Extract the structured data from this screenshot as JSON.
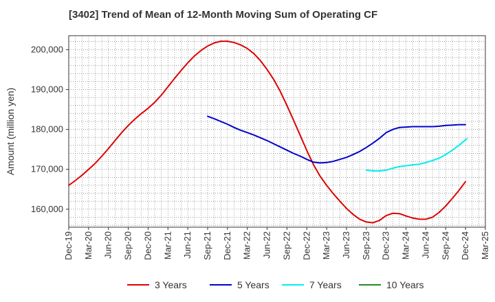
{
  "chart_data": {
    "type": "line",
    "title": "[3402]  Trend of Mean of 12-Month Moving Sum of Operating CF",
    "xlabel": "",
    "ylabel": "Amount (million yen)",
    "ylim": [
      155500,
      203500
    ],
    "yticks": [
      160000,
      170000,
      180000,
      190000,
      200000
    ],
    "ytick_labels": [
      "160,000",
      "170,000",
      "180,000",
      "190,000",
      "200,000"
    ],
    "xticks": [
      "Dec-19",
      "Mar-20",
      "Jun-20",
      "Sep-20",
      "Dec-20",
      "Mar-21",
      "Jun-21",
      "Sep-21",
      "Dec-21",
      "Mar-22",
      "Jun-22",
      "Sep-22",
      "Dec-22",
      "Mar-23",
      "Jun-23",
      "Sep-23",
      "Dec-23",
      "Mar-24",
      "Jun-24",
      "Sep-24",
      "Dec-24",
      "Mar-25"
    ],
    "x_unit": "month index from Dec-19",
    "grid": true,
    "legend_position": "bottom",
    "series": [
      {
        "name": "3 Years",
        "color": "#dd0000",
        "points": [
          [
            0,
            166000
          ],
          [
            1,
            167200
          ],
          [
            2,
            168500
          ],
          [
            3,
            170000
          ],
          [
            4,
            171500
          ],
          [
            5,
            173300
          ],
          [
            6,
            175200
          ],
          [
            7,
            177200
          ],
          [
            8,
            179200
          ],
          [
            9,
            181000
          ],
          [
            10,
            182600
          ],
          [
            11,
            184000
          ],
          [
            12,
            185300
          ],
          [
            13,
            186800
          ],
          [
            14,
            188600
          ],
          [
            15,
            190700
          ],
          [
            16,
            192800
          ],
          [
            17,
            194800
          ],
          [
            18,
            196700
          ],
          [
            19,
            198400
          ],
          [
            20,
            199800
          ],
          [
            21,
            200900
          ],
          [
            22,
            201700
          ],
          [
            23,
            202100
          ],
          [
            24,
            202100
          ],
          [
            25,
            201800
          ],
          [
            26,
            201200
          ],
          [
            27,
            200300
          ],
          [
            28,
            199000
          ],
          [
            29,
            197200
          ],
          [
            30,
            195000
          ],
          [
            31,
            192500
          ],
          [
            32,
            189500
          ],
          [
            33,
            186000
          ],
          [
            34,
            182300
          ],
          [
            35,
            178500
          ],
          [
            36,
            174700
          ],
          [
            37,
            171200
          ],
          [
            38,
            168300
          ],
          [
            39,
            166000
          ],
          [
            40,
            163900
          ],
          [
            41,
            162000
          ],
          [
            42,
            160200
          ],
          [
            43,
            158700
          ],
          [
            44,
            157500
          ],
          [
            45,
            156800
          ],
          [
            46,
            156600
          ],
          [
            47,
            157200
          ],
          [
            48,
            158400
          ],
          [
            49,
            159000
          ],
          [
            50,
            158900
          ],
          [
            51,
            158300
          ],
          [
            52,
            157800
          ],
          [
            53,
            157500
          ],
          [
            54,
            157500
          ],
          [
            55,
            158000
          ],
          [
            56,
            159200
          ],
          [
            57,
            160800
          ],
          [
            58,
            162700
          ],
          [
            59,
            164700
          ],
          [
            60,
            166900
          ]
        ]
      },
      {
        "name": "5 Years",
        "color": "#0000cc",
        "points": [
          [
            21,
            183300
          ],
          [
            22,
            182700
          ],
          [
            23,
            182000
          ],
          [
            24,
            181300
          ],
          [
            25,
            180500
          ],
          [
            26,
            179800
          ],
          [
            27,
            179200
          ],
          [
            28,
            178600
          ],
          [
            29,
            177900
          ],
          [
            30,
            177200
          ],
          [
            31,
            176400
          ],
          [
            32,
            175600
          ],
          [
            33,
            174800
          ],
          [
            34,
            174000
          ],
          [
            35,
            173300
          ],
          [
            36,
            172500
          ],
          [
            37,
            171800
          ],
          [
            38,
            171600
          ],
          [
            39,
            171700
          ],
          [
            40,
            172000
          ],
          [
            41,
            172500
          ],
          [
            42,
            173000
          ],
          [
            43,
            173700
          ],
          [
            44,
            174500
          ],
          [
            45,
            175500
          ],
          [
            46,
            176600
          ],
          [
            47,
            177800
          ],
          [
            48,
            179200
          ],
          [
            49,
            180000
          ],
          [
            50,
            180500
          ],
          [
            51,
            180600
          ],
          [
            52,
            180700
          ],
          [
            53,
            180700
          ],
          [
            54,
            180700
          ],
          [
            55,
            180700
          ],
          [
            56,
            180800
          ],
          [
            57,
            181000
          ],
          [
            58,
            181100
          ],
          [
            59,
            181200
          ],
          [
            60,
            181200
          ]
        ]
      },
      {
        "name": "7 Years",
        "color": "#00eeee",
        "points": [
          [
            45,
            169800
          ],
          [
            46,
            169600
          ],
          [
            47,
            169600
          ],
          [
            48,
            169800
          ],
          [
            49,
            170300
          ],
          [
            50,
            170700
          ],
          [
            51,
            170900
          ],
          [
            52,
            171100
          ],
          [
            53,
            171300
          ],
          [
            54,
            171700
          ],
          [
            55,
            172200
          ],
          [
            56,
            172800
          ],
          [
            57,
            173700
          ],
          [
            58,
            174800
          ],
          [
            59,
            176000
          ],
          [
            60,
            177400
          ],
          [
            60.2,
            177700
          ]
        ]
      },
      {
        "name": "10 Years",
        "color": "#228b22",
        "points": []
      }
    ]
  }
}
